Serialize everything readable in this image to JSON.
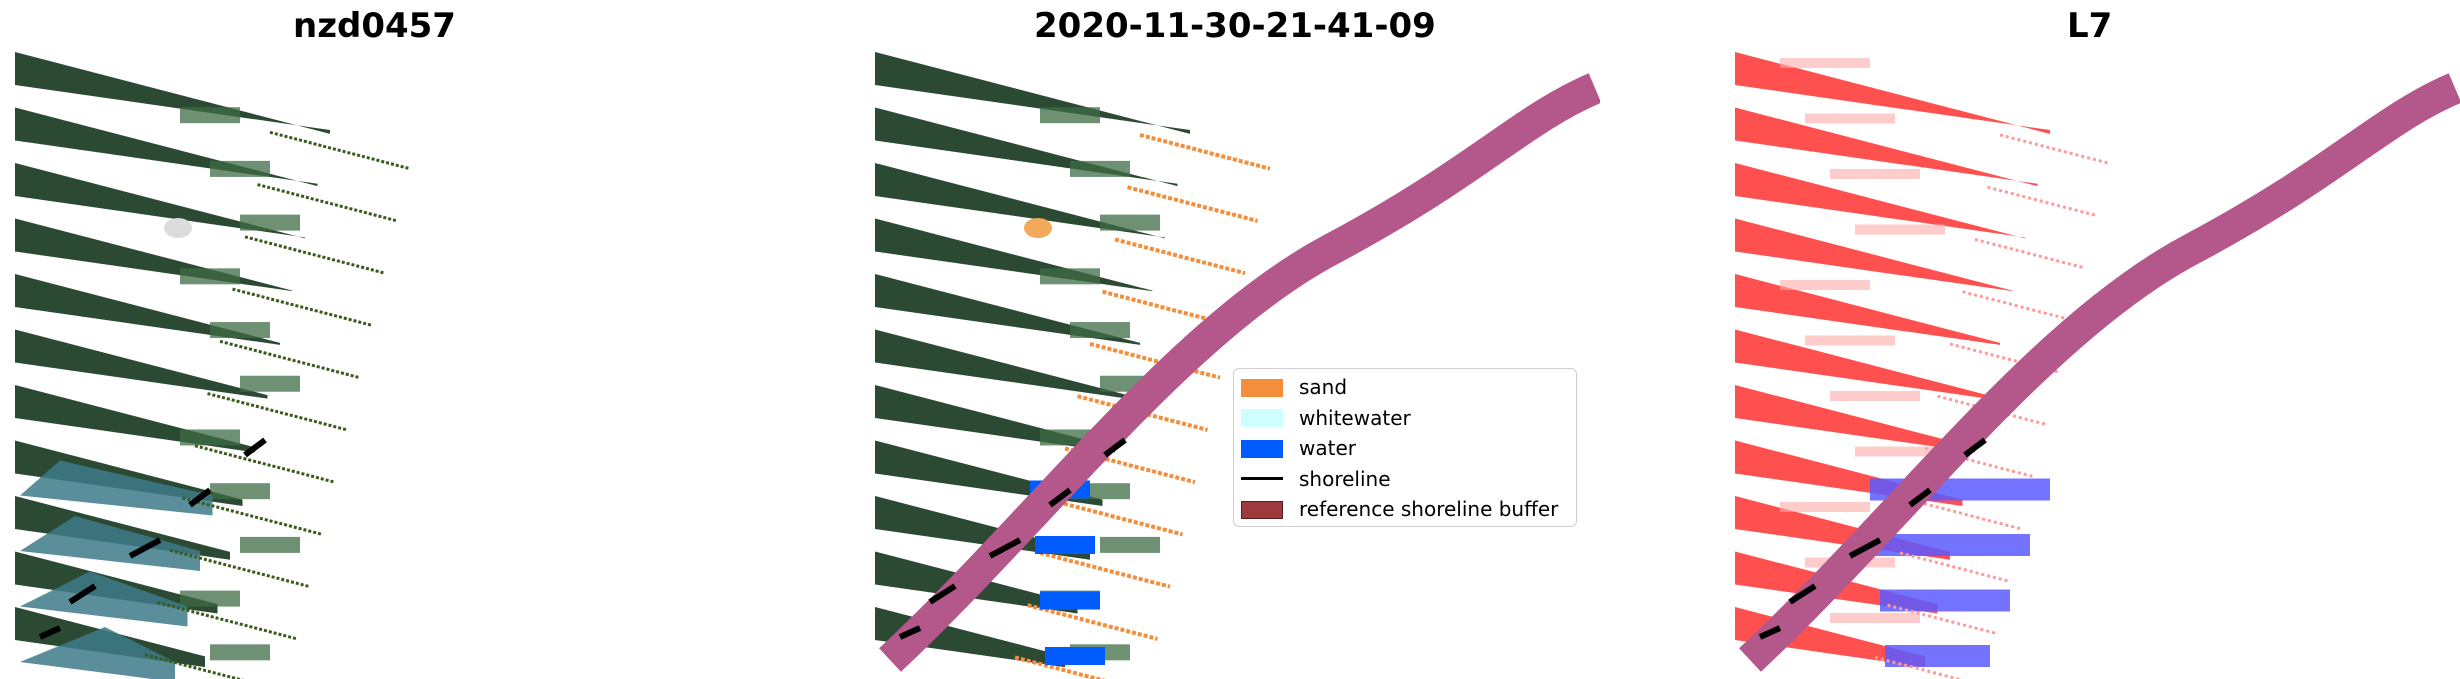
{
  "panels": [
    {
      "title": "nzd0457"
    },
    {
      "title": "2020-11-30-21-41-09"
    },
    {
      "title": "L7"
    }
  ],
  "legend": {
    "items": [
      {
        "label": "sand",
        "color": "#f28e3c",
        "kind": "patch"
      },
      {
        "label": "whitewater",
        "color": "#ccfffe",
        "kind": "patch"
      },
      {
        "label": "water",
        "color": "#005cff",
        "kind": "patch"
      },
      {
        "label": "shoreline",
        "color": "#000000",
        "kind": "line"
      },
      {
        "label": "reference shoreline buffer",
        "color": "#9e3a3d",
        "kind": "patch"
      }
    ]
  },
  "colors": {
    "vegetation": "#2c4a33",
    "field_green": "#3e6b44",
    "sea": "#3d7a8a",
    "buffer": "#b4578a",
    "index_red": "#ff5050",
    "index_blue": "#5a5aff"
  }
}
